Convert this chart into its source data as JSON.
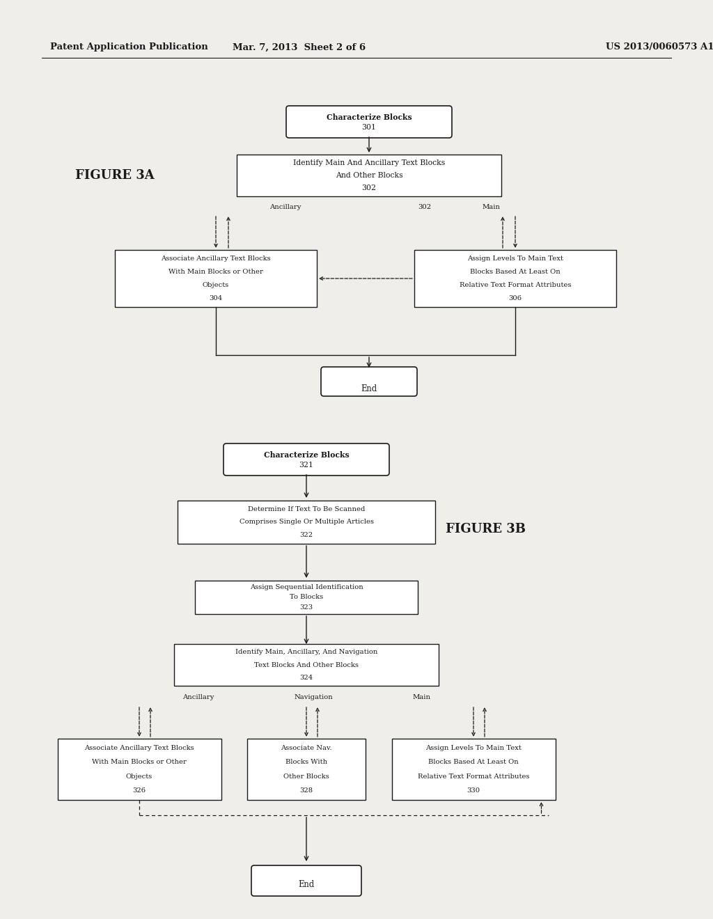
{
  "bg_color": "#f0eeeb",
  "header_left": "Patent Application Publication",
  "header_mid": "Mar. 7, 2013  Sheet 2 of 6",
  "header_right": "US 2013/0060573 A1",
  "fig3a_label": "FIGURE 3A",
  "fig3b_label": "FIGURE 3B"
}
